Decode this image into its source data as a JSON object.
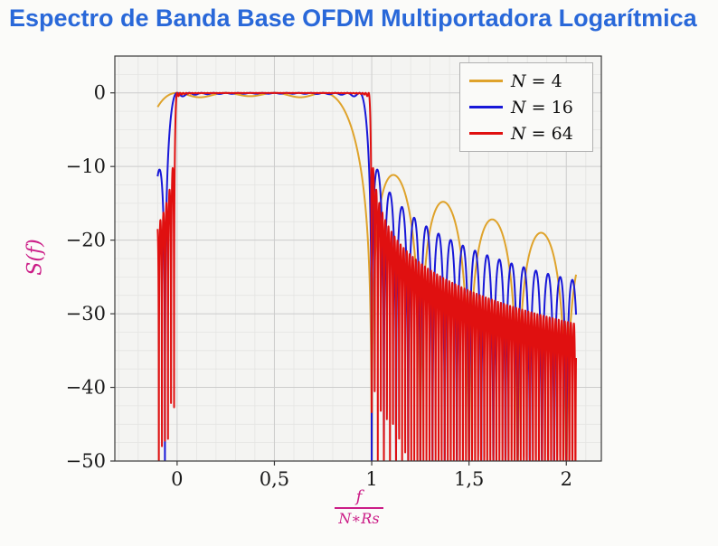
{
  "chart_data": {
    "type": "line",
    "title": "Espectro de Banda Base OFDM Multiportadora Logarítmica",
    "ylabel": "S(f)",
    "xlabel": "f/(N∗Rs)",
    "xlabel_numerator": "f",
    "xlabel_denominator": "N∗Rs",
    "xlim": [
      -0.32,
      2.18
    ],
    "ylim": [
      -50,
      5
    ],
    "x_data_range": [
      -0.1,
      2.05
    ],
    "sample_points": 4200,
    "grid": true,
    "minor_x_step": 0.1,
    "minor_y_step": 2.5,
    "xticks": [
      {
        "v": 0,
        "label": "0"
      },
      {
        "v": 0.5,
        "label": "0,5"
      },
      {
        "v": 1,
        "label": "1"
      },
      {
        "v": 1.5,
        "label": "1,5"
      },
      {
        "v": 2,
        "label": "2"
      }
    ],
    "yticks": [
      {
        "v": 0,
        "label": "0"
      },
      {
        "v": -10,
        "label": "−10"
      },
      {
        "v": -20,
        "label": "−20"
      },
      {
        "v": -30,
        "label": "−30"
      },
      {
        "v": -40,
        "label": "−40"
      },
      {
        "v": -50,
        "label": "−50"
      }
    ],
    "legend_position": "top-right",
    "model": "S_dB(x) = 10*log10( sum_{k=0..N-1} sinc^2(N*x - k) ), sinc(u) = sin(pi*u)/(pi*u), x = f/(N*Rs); flat ~0 dB passband for 0<=x<=1, decaying sinc sidelobes outside; sidelobe spacing 1/N",
    "series": [
      {
        "name": "N = 4",
        "label_var": "N",
        "label_rest": " = 4",
        "N": 4,
        "color": "#dfa32b"
      },
      {
        "name": "N = 16",
        "label_var": "N",
        "label_rest": " = 16",
        "N": 16,
        "color": "#1818d8"
      },
      {
        "name": "N = 64",
        "label_var": "N",
        "label_rest": " = 64",
        "N": 64,
        "color": "#e01010"
      }
    ],
    "colors": {
      "title": "#2968d9",
      "axis_label": "#cb1d87",
      "tick_text": "#1a1a1a",
      "page_bg": "#fbfbf9",
      "plot_bg": "#f4f4f2",
      "grid_major": "#cccccc",
      "grid_minor": "#e4e4e2",
      "axis_box": "#3a3a3a",
      "legend_bg": "#fafaf8",
      "legend_border": "#b0b0b0"
    }
  }
}
